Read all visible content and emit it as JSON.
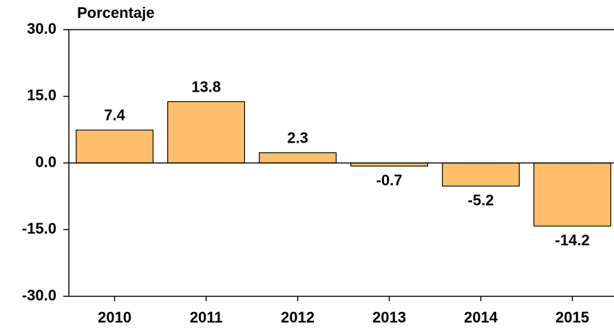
{
  "chart_data": {
    "type": "bar",
    "y_axis_label": "Porcentaje",
    "categories": [
      "2010",
      "2011",
      "2012",
      "2013",
      "2014",
      "2015"
    ],
    "values": [
      7.4,
      13.8,
      2.3,
      -0.7,
      -5.2,
      -14.2
    ],
    "color": "#fdbf6b",
    "ylim": [
      -30,
      30
    ],
    "yticks": [
      {
        "value": 30,
        "label": "30.0"
      },
      {
        "value": 15,
        "label": "15.0"
      },
      {
        "value": 0,
        "label": "0.0"
      },
      {
        "value": -15,
        "label": "-15.0"
      },
      {
        "value": -30,
        "label": "-30.0"
      }
    ]
  }
}
